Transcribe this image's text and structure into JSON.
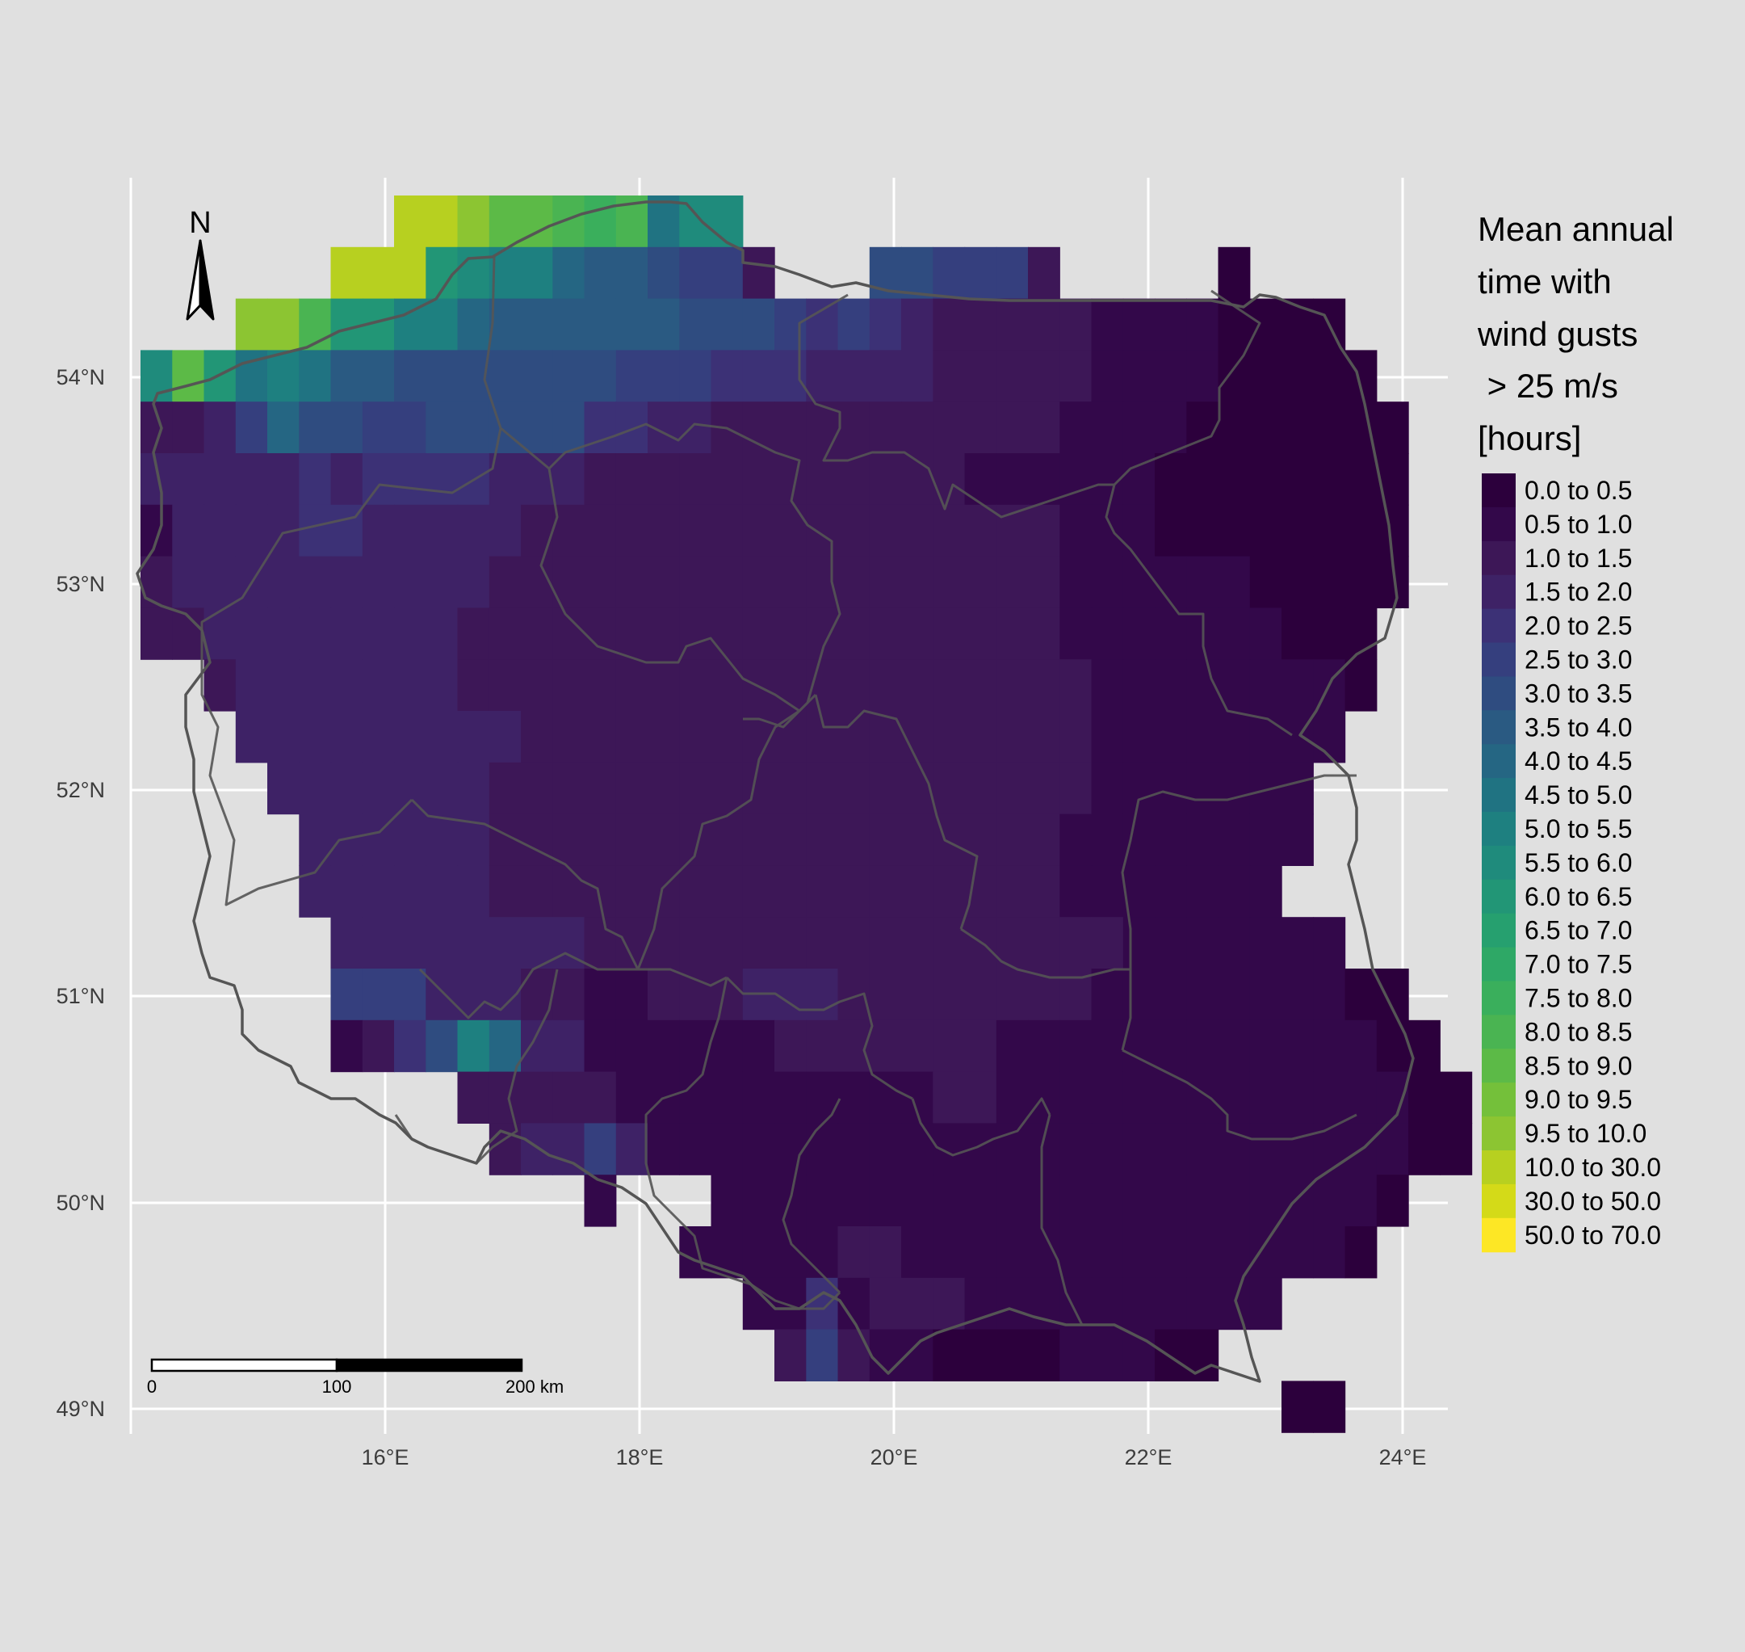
{
  "map": {
    "axes": {
      "lat_labels": [
        "54°N",
        "53°N",
        "52°N",
        "51°N",
        "50°N",
        "49°N"
      ],
      "lon_labels": [
        "16°E",
        "18°E",
        "20°E",
        "22°E",
        "24°E"
      ]
    },
    "north_arrow": {
      "label": "N"
    },
    "scale_bar": {
      "labels": [
        "0",
        "100",
        "200 km"
      ]
    },
    "legend": {
      "title_lines": [
        "Mean annual",
        "time with",
        "wind gusts",
        " > 25 m/s",
        "[hours]"
      ],
      "items": [
        {
          "label": "0.0 to 0.5",
          "color": "#2c003c"
        },
        {
          "label": "0.5 to 1.0",
          "color": "#33084a"
        },
        {
          "label": "1.0 to 1.5",
          "color": "#3d1757"
        },
        {
          "label": "1.5 to 2.0",
          "color": "#3e2266"
        },
        {
          "label": "2.0 to 2.5",
          "color": "#3c3176"
        },
        {
          "label": "2.5 to 3.0",
          "color": "#353f7e"
        },
        {
          "label": "3.0 to 3.5",
          "color": "#2f4c80"
        },
        {
          "label": "3.5 to 4.0",
          "color": "#2a5a82"
        },
        {
          "label": "4.0 to 4.5",
          "color": "#256683"
        },
        {
          "label": "4.5 to 5.0",
          "color": "#207382"
        },
        {
          "label": "5.0 to 5.5",
          "color": "#1e8080"
        },
        {
          "label": "5.5 to 6.0",
          "color": "#1f8b7c"
        },
        {
          "label": "6.0 to 6.5",
          "color": "#229676"
        },
        {
          "label": "6.5 to 7.0",
          "color": "#26a06f"
        },
        {
          "label": "7.0 to 7.5",
          "color": "#2ea866"
        },
        {
          "label": "7.5 to 8.0",
          "color": "#3aaf5c"
        },
        {
          "label": "8.0 to 8.5",
          "color": "#4ab452"
        },
        {
          "label": "8.5 to 9.0",
          "color": "#5cba47"
        },
        {
          "label": "9.0 to 9.5",
          "color": "#74c03a"
        },
        {
          "label": "9.5 to 10.0",
          "color": "#8cc532"
        },
        {
          "label": "10.0 to 30.0",
          "color": "#b7d020"
        },
        {
          "label": "30.0 to 50.0",
          "color": "#d4da18"
        },
        {
          "label": "50.0 to 70.0",
          "color": "#fde725"
        }
      ]
    },
    "colors": {
      "background": "#e0e0e0",
      "gridline": "#ffffff",
      "boundary": "#555555",
      "base_fill": "#3e1f60"
    }
  }
}
